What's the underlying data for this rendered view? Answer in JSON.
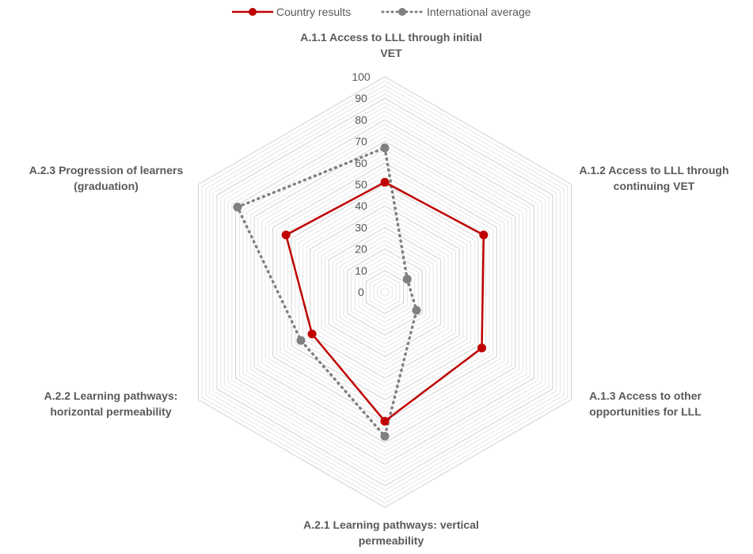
{
  "chart_data": {
    "type": "radar",
    "title": "",
    "categories": [
      [
        "A.1.1 Access to LLL through initial",
        "VET"
      ],
      [
        "A.1.2 Access to LLL through",
        "continuing VET"
      ],
      [
        "A.1.3 Access to other",
        "opportunities for LLL"
      ],
      [
        "A.2.1 Learning pathways: vertical",
        "permeability"
      ],
      [
        "A.2.2 Learning pathways:",
        "horizontal permeability"
      ],
      [
        "A.2.3 Progression of learners",
        "(graduation)"
      ]
    ],
    "rlim": [
      0,
      100
    ],
    "ticks": [
      0,
      10,
      20,
      30,
      40,
      50,
      60,
      70,
      80,
      90,
      100
    ],
    "legend_position": "top",
    "grid": true,
    "series": [
      {
        "name": "Country results",
        "values": [
          51,
          53,
          52,
          60,
          39,
          53
        ],
        "color": "#C00000",
        "style": "solid"
      },
      {
        "name": "International average",
        "values": [
          67,
          12,
          17,
          67,
          45,
          79
        ],
        "color": "#808080",
        "style": "dotted"
      }
    ]
  }
}
